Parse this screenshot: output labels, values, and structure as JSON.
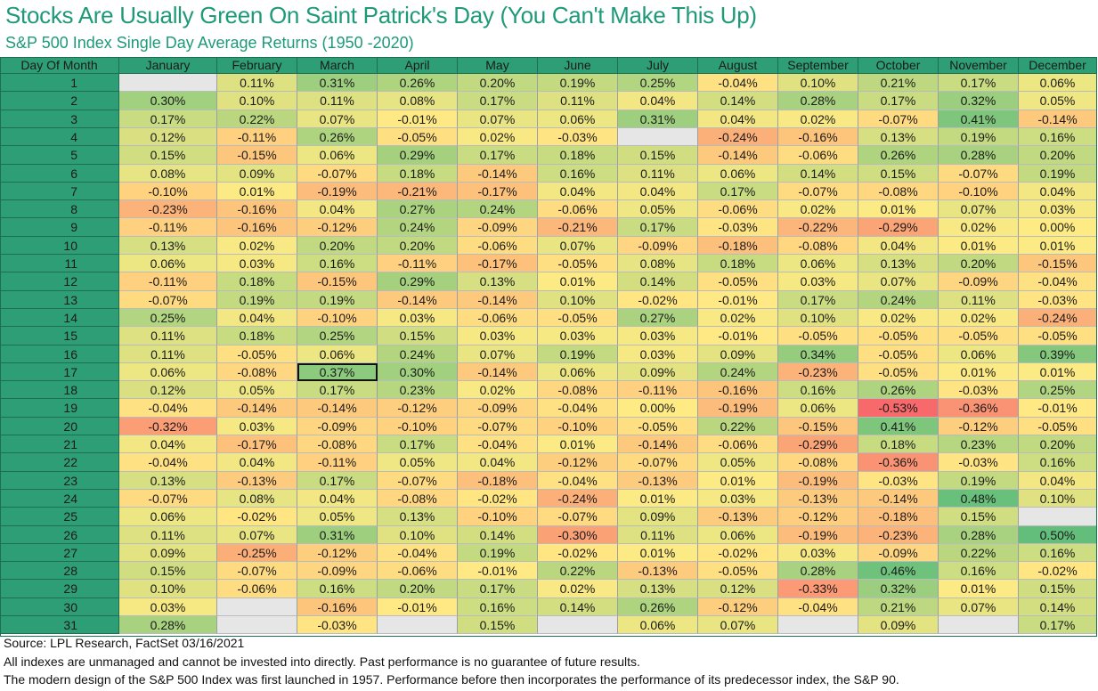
{
  "header": {
    "title": "Stocks Are Usually Green On Saint Patrick's Day (You Can't Make This Up)",
    "subtitle": "S&P 500 Index Single Day Average Returns (1950 -2020)"
  },
  "footer": {
    "source": "Source: LPL Research, FactSet 03/16/2021",
    "disclaimer": "All indexes are unmanaged and cannot be invested into directly. Past performance is no guarantee of future results.",
    "note": "The modern design of the S&P 500 Index was first launched in 1957. Performance before then incorporates the performance of its predecessor index, the S&P 90."
  },
  "colors": {
    "header_green": "#2e9e77",
    "title_green": "#1e9a78",
    "missing_cell": "#e6e6e6",
    "scale_low": "#f8696b",
    "scale_mid": "#ffeb84",
    "scale_high": "#63be7b"
  },
  "highlight": {
    "month": "March",
    "day": "17"
  },
  "chart_data": {
    "type": "heatmap",
    "title": "Stocks Are Usually Green On Saint Patrick's Day (You Can't Make This Up)",
    "subtitle": "S&P 500 Index Single Day Average Returns (1950 -2020)",
    "row_header": "Day Of Month",
    "columns": [
      "January",
      "February",
      "March",
      "April",
      "May",
      "June",
      "July",
      "August",
      "September",
      "October",
      "November",
      "December"
    ],
    "rows": [
      {
        "day": "1",
        "values": [
          "",
          "0.11%",
          "0.31%",
          "0.26%",
          "0.20%",
          "0.19%",
          "0.25%",
          "-0.04%",
          "0.10%",
          "0.21%",
          "0.17%",
          "0.06%"
        ]
      },
      {
        "day": "2",
        "values": [
          "0.30%",
          "0.10%",
          "0.11%",
          "0.08%",
          "0.17%",
          "0.11%",
          "0.04%",
          "0.14%",
          "0.28%",
          "0.17%",
          "0.32%",
          "0.05%"
        ]
      },
      {
        "day": "3",
        "values": [
          "0.17%",
          "0.22%",
          "0.07%",
          "-0.01%",
          "0.07%",
          "0.06%",
          "0.31%",
          "0.04%",
          "0.02%",
          "-0.07%",
          "0.41%",
          "-0.14%"
        ]
      },
      {
        "day": "4",
        "values": [
          "0.12%",
          "-0.11%",
          "0.26%",
          "-0.05%",
          "0.02%",
          "-0.03%",
          "",
          "-0.24%",
          "-0.16%",
          "0.13%",
          "0.19%",
          "0.16%"
        ]
      },
      {
        "day": "5",
        "values": [
          "0.15%",
          "-0.15%",
          "0.06%",
          "0.29%",
          "0.17%",
          "0.18%",
          "0.15%",
          "-0.14%",
          "-0.06%",
          "0.26%",
          "0.28%",
          "0.20%"
        ]
      },
      {
        "day": "6",
        "values": [
          "0.08%",
          "0.09%",
          "-0.07%",
          "0.18%",
          "-0.14%",
          "0.16%",
          "0.11%",
          "0.06%",
          "0.14%",
          "0.15%",
          "-0.07%",
          "0.19%"
        ]
      },
      {
        "day": "7",
        "values": [
          "-0.10%",
          "0.01%",
          "-0.19%",
          "-0.21%",
          "-0.17%",
          "0.04%",
          "0.04%",
          "0.17%",
          "-0.07%",
          "-0.08%",
          "-0.10%",
          "0.04%"
        ]
      },
      {
        "day": "8",
        "values": [
          "-0.23%",
          "-0.16%",
          "0.04%",
          "0.27%",
          "0.24%",
          "-0.06%",
          "0.05%",
          "-0.06%",
          "0.02%",
          "0.01%",
          "0.07%",
          "0.03%"
        ]
      },
      {
        "day": "9",
        "values": [
          "-0.11%",
          "-0.16%",
          "-0.12%",
          "0.24%",
          "-0.09%",
          "-0.21%",
          "0.17%",
          "-0.03%",
          "-0.22%",
          "-0.29%",
          "0.02%",
          "0.00%"
        ]
      },
      {
        "day": "10",
        "values": [
          "0.13%",
          "0.02%",
          "0.20%",
          "0.20%",
          "-0.06%",
          "0.07%",
          "-0.09%",
          "-0.18%",
          "-0.08%",
          "0.04%",
          "0.01%",
          "0.01%"
        ]
      },
      {
        "day": "11",
        "values": [
          "0.06%",
          "0.03%",
          "0.16%",
          "-0.11%",
          "-0.17%",
          "-0.05%",
          "0.08%",
          "0.18%",
          "0.06%",
          "0.13%",
          "0.20%",
          "-0.15%"
        ]
      },
      {
        "day": "12",
        "values": [
          "-0.11%",
          "0.18%",
          "-0.15%",
          "0.29%",
          "0.13%",
          "0.01%",
          "0.14%",
          "-0.05%",
          "0.03%",
          "0.07%",
          "-0.09%",
          "-0.04%"
        ]
      },
      {
        "day": "13",
        "values": [
          "-0.07%",
          "0.19%",
          "0.19%",
          "-0.14%",
          "-0.14%",
          "0.10%",
          "-0.02%",
          "-0.01%",
          "0.17%",
          "0.24%",
          "0.11%",
          "-0.03%"
        ]
      },
      {
        "day": "14",
        "values": [
          "0.25%",
          "0.04%",
          "-0.10%",
          "0.03%",
          "-0.06%",
          "-0.05%",
          "0.27%",
          "0.02%",
          "0.10%",
          "0.02%",
          "0.02%",
          "-0.24%"
        ]
      },
      {
        "day": "15",
        "values": [
          "0.11%",
          "0.18%",
          "0.25%",
          "0.15%",
          "0.03%",
          "0.03%",
          "0.03%",
          "-0.01%",
          "-0.05%",
          "-0.05%",
          "-0.05%",
          "-0.05%"
        ]
      },
      {
        "day": "16",
        "values": [
          "0.11%",
          "-0.05%",
          "0.06%",
          "0.24%",
          "0.07%",
          "0.19%",
          "0.03%",
          "0.09%",
          "0.34%",
          "-0.05%",
          "0.06%",
          "0.39%"
        ]
      },
      {
        "day": "17",
        "values": [
          "0.06%",
          "-0.08%",
          "0.37%",
          "0.30%",
          "-0.14%",
          "0.06%",
          "0.09%",
          "0.24%",
          "-0.23%",
          "-0.05%",
          "0.01%",
          "0.01%"
        ]
      },
      {
        "day": "18",
        "values": [
          "0.12%",
          "0.05%",
          "0.17%",
          "0.23%",
          "0.02%",
          "-0.08%",
          "-0.11%",
          "-0.16%",
          "0.16%",
          "0.26%",
          "-0.03%",
          "0.25%"
        ]
      },
      {
        "day": "19",
        "values": [
          "-0.04%",
          "-0.14%",
          "-0.14%",
          "-0.12%",
          "-0.09%",
          "-0.04%",
          "0.00%",
          "-0.19%",
          "0.06%",
          "-0.53%",
          "-0.36%",
          "-0.01%"
        ]
      },
      {
        "day": "20",
        "values": [
          "-0.32%",
          "0.03%",
          "-0.09%",
          "-0.10%",
          "-0.07%",
          "-0.10%",
          "-0.05%",
          "0.22%",
          "-0.15%",
          "0.41%",
          "-0.12%",
          "-0.05%"
        ]
      },
      {
        "day": "21",
        "values": [
          "0.04%",
          "-0.17%",
          "-0.08%",
          "0.17%",
          "-0.04%",
          "0.01%",
          "-0.14%",
          "-0.06%",
          "-0.29%",
          "0.18%",
          "0.23%",
          "0.20%"
        ]
      },
      {
        "day": "22",
        "values": [
          "-0.04%",
          "0.04%",
          "-0.11%",
          "0.05%",
          "0.04%",
          "-0.12%",
          "-0.07%",
          "0.05%",
          "-0.08%",
          "-0.36%",
          "-0.03%",
          "0.16%"
        ]
      },
      {
        "day": "23",
        "values": [
          "0.13%",
          "-0.13%",
          "0.17%",
          "-0.07%",
          "-0.18%",
          "-0.04%",
          "-0.13%",
          "0.01%",
          "-0.19%",
          "-0.03%",
          "0.19%",
          "0.04%"
        ]
      },
      {
        "day": "24",
        "values": [
          "-0.07%",
          "0.08%",
          "0.04%",
          "-0.08%",
          "-0.02%",
          "-0.24%",
          "0.01%",
          "0.03%",
          "-0.13%",
          "-0.14%",
          "0.48%",
          "0.10%"
        ]
      },
      {
        "day": "25",
        "values": [
          "0.06%",
          "-0.02%",
          "0.05%",
          "0.13%",
          "-0.10%",
          "-0.07%",
          "0.09%",
          "-0.13%",
          "-0.12%",
          "-0.18%",
          "0.15%",
          ""
        ]
      },
      {
        "day": "26",
        "values": [
          "0.11%",
          "0.07%",
          "0.31%",
          "0.10%",
          "0.14%",
          "-0.30%",
          "0.11%",
          "0.06%",
          "-0.19%",
          "-0.23%",
          "0.28%",
          "0.50%"
        ]
      },
      {
        "day": "27",
        "values": [
          "0.09%",
          "-0.25%",
          "-0.12%",
          "-0.04%",
          "0.19%",
          "-0.02%",
          "0.01%",
          "-0.02%",
          "0.03%",
          "-0.09%",
          "0.22%",
          "0.16%"
        ]
      },
      {
        "day": "28",
        "values": [
          "0.15%",
          "-0.07%",
          "-0.09%",
          "-0.06%",
          "-0.01%",
          "0.22%",
          "-0.13%",
          "-0.05%",
          "0.28%",
          "0.46%",
          "0.16%",
          "-0.02%"
        ]
      },
      {
        "day": "29",
        "values": [
          "0.10%",
          "-0.06%",
          "0.16%",
          "0.20%",
          "0.17%",
          "0.02%",
          "0.13%",
          "0.12%",
          "-0.33%",
          "0.32%",
          "0.01%",
          "0.15%"
        ]
      },
      {
        "day": "30",
        "values": [
          "0.03%",
          "",
          "-0.16%",
          "-0.01%",
          "0.16%",
          "0.14%",
          "0.26%",
          "-0.12%",
          "-0.04%",
          "0.21%",
          "0.07%",
          "0.14%"
        ]
      },
      {
        "day": "31",
        "values": [
          "0.28%",
          "",
          "-0.03%",
          "",
          "0.15%",
          "",
          "0.06%",
          "0.07%",
          "",
          "0.09%",
          "",
          "0.17%"
        ]
      }
    ],
    "scale_range": [
      -0.53,
      0.5
    ]
  }
}
